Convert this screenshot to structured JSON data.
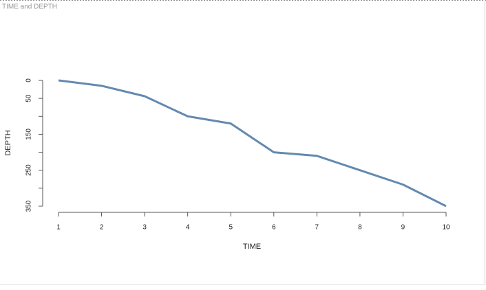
{
  "chart_data": {
    "type": "line",
    "title": "TIME and DEPTH",
    "xlabel": "TIME",
    "ylabel": "DEPTH",
    "x": [
      1,
      2,
      3,
      4,
      5,
      6,
      7,
      8,
      9,
      10
    ],
    "series": [
      {
        "color": "#6489b0",
        "values": [
          0,
          15,
          44,
          100,
          120,
          200,
          210,
          250,
          290,
          350
        ]
      }
    ],
    "xlim": [
      1,
      10
    ],
    "xticks": [
      1,
      2,
      3,
      4,
      5,
      6,
      7,
      8,
      9,
      10
    ],
    "ylim": [
      350,
      0
    ],
    "yticks": [
      0,
      50,
      {
        "value": 100,
        "label": null
      },
      150,
      {
        "value": 200,
        "label": null
      },
      250,
      {
        "value": 300,
        "label": null
      },
      350
    ]
  }
}
